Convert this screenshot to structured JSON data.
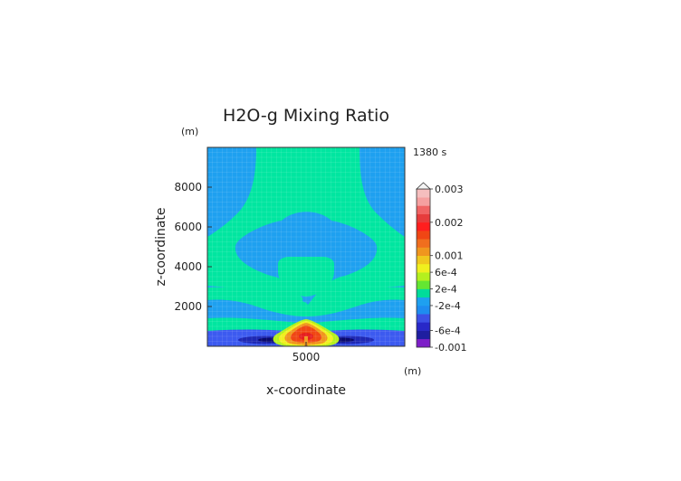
{
  "chart_data": {
    "type": "heatmap",
    "title": "H2O-g Mixing Ratio",
    "time_label": "1380 s",
    "xlabel": "x-coordinate",
    "ylabel": "z-coordinate",
    "x_unit": "(m)",
    "y_unit": "(m)",
    "xlim": [
      1000,
      9000
    ],
    "ylim": [
      0,
      10000
    ],
    "x_ticks": [
      {
        "value": 5000,
        "label": "5000"
      }
    ],
    "y_ticks": [
      {
        "value": 2000,
        "label": "2000"
      },
      {
        "value": 4000,
        "label": "4000"
      },
      {
        "value": 6000,
        "label": "6000"
      },
      {
        "value": 8000,
        "label": "8000"
      }
    ],
    "grid": true,
    "colorbar": {
      "position": "right",
      "labels": [
        {
          "level": -0.001,
          "label": "-0.001"
        },
        {
          "level": -0.0006,
          "label": "-6e-4"
        },
        {
          "level": -0.0002,
          "label": "-2e-4"
        },
        {
          "level": 0.0002,
          "label": "2e-4"
        },
        {
          "level": 0.0006,
          "label": "6e-4"
        },
        {
          "level": 0.001,
          "label": "0.001"
        },
        {
          "level": 0.002,
          "label": "0.002"
        },
        {
          "level": 0.003,
          "label": "0.003"
        }
      ],
      "colors": [
        "#7d1ec8",
        "#1e1ea0",
        "#2828c8",
        "#3c50e6",
        "#1e8cf0",
        "#1ea0f0",
        "#00dc9b",
        "#64e632",
        "#b4f01e",
        "#f0f01e",
        "#f0c81e",
        "#f0961e",
        "#f06e1e",
        "#f04614",
        "#ff1e1e",
        "#e63c3c",
        "#f06464",
        "#f5a0a0",
        "#f5bebe"
      ],
      "colors_note": "bands bottom to top"
    },
    "regions": [
      {
        "color": "#1ea0f0",
        "level": -0.0001
      },
      {
        "color": "#00e6a0",
        "level": 0.0001
      },
      {
        "color": "#3c5af0",
        "level": -0.0003
      },
      {
        "color": "#1e28b4",
        "level": -0.0007
      },
      {
        "color": "#0a0a6e",
        "level": -0.001
      },
      {
        "color": "#b4f01e",
        "level": 0.0004
      },
      {
        "color": "#f0f01e",
        "level": 0.0006
      },
      {
        "color": "#f0961e",
        "level": 0.0009
      },
      {
        "color": "#f04614",
        "level": 0.0012
      },
      {
        "color": "#e61e1e",
        "level": 0.0015
      }
    ]
  }
}
